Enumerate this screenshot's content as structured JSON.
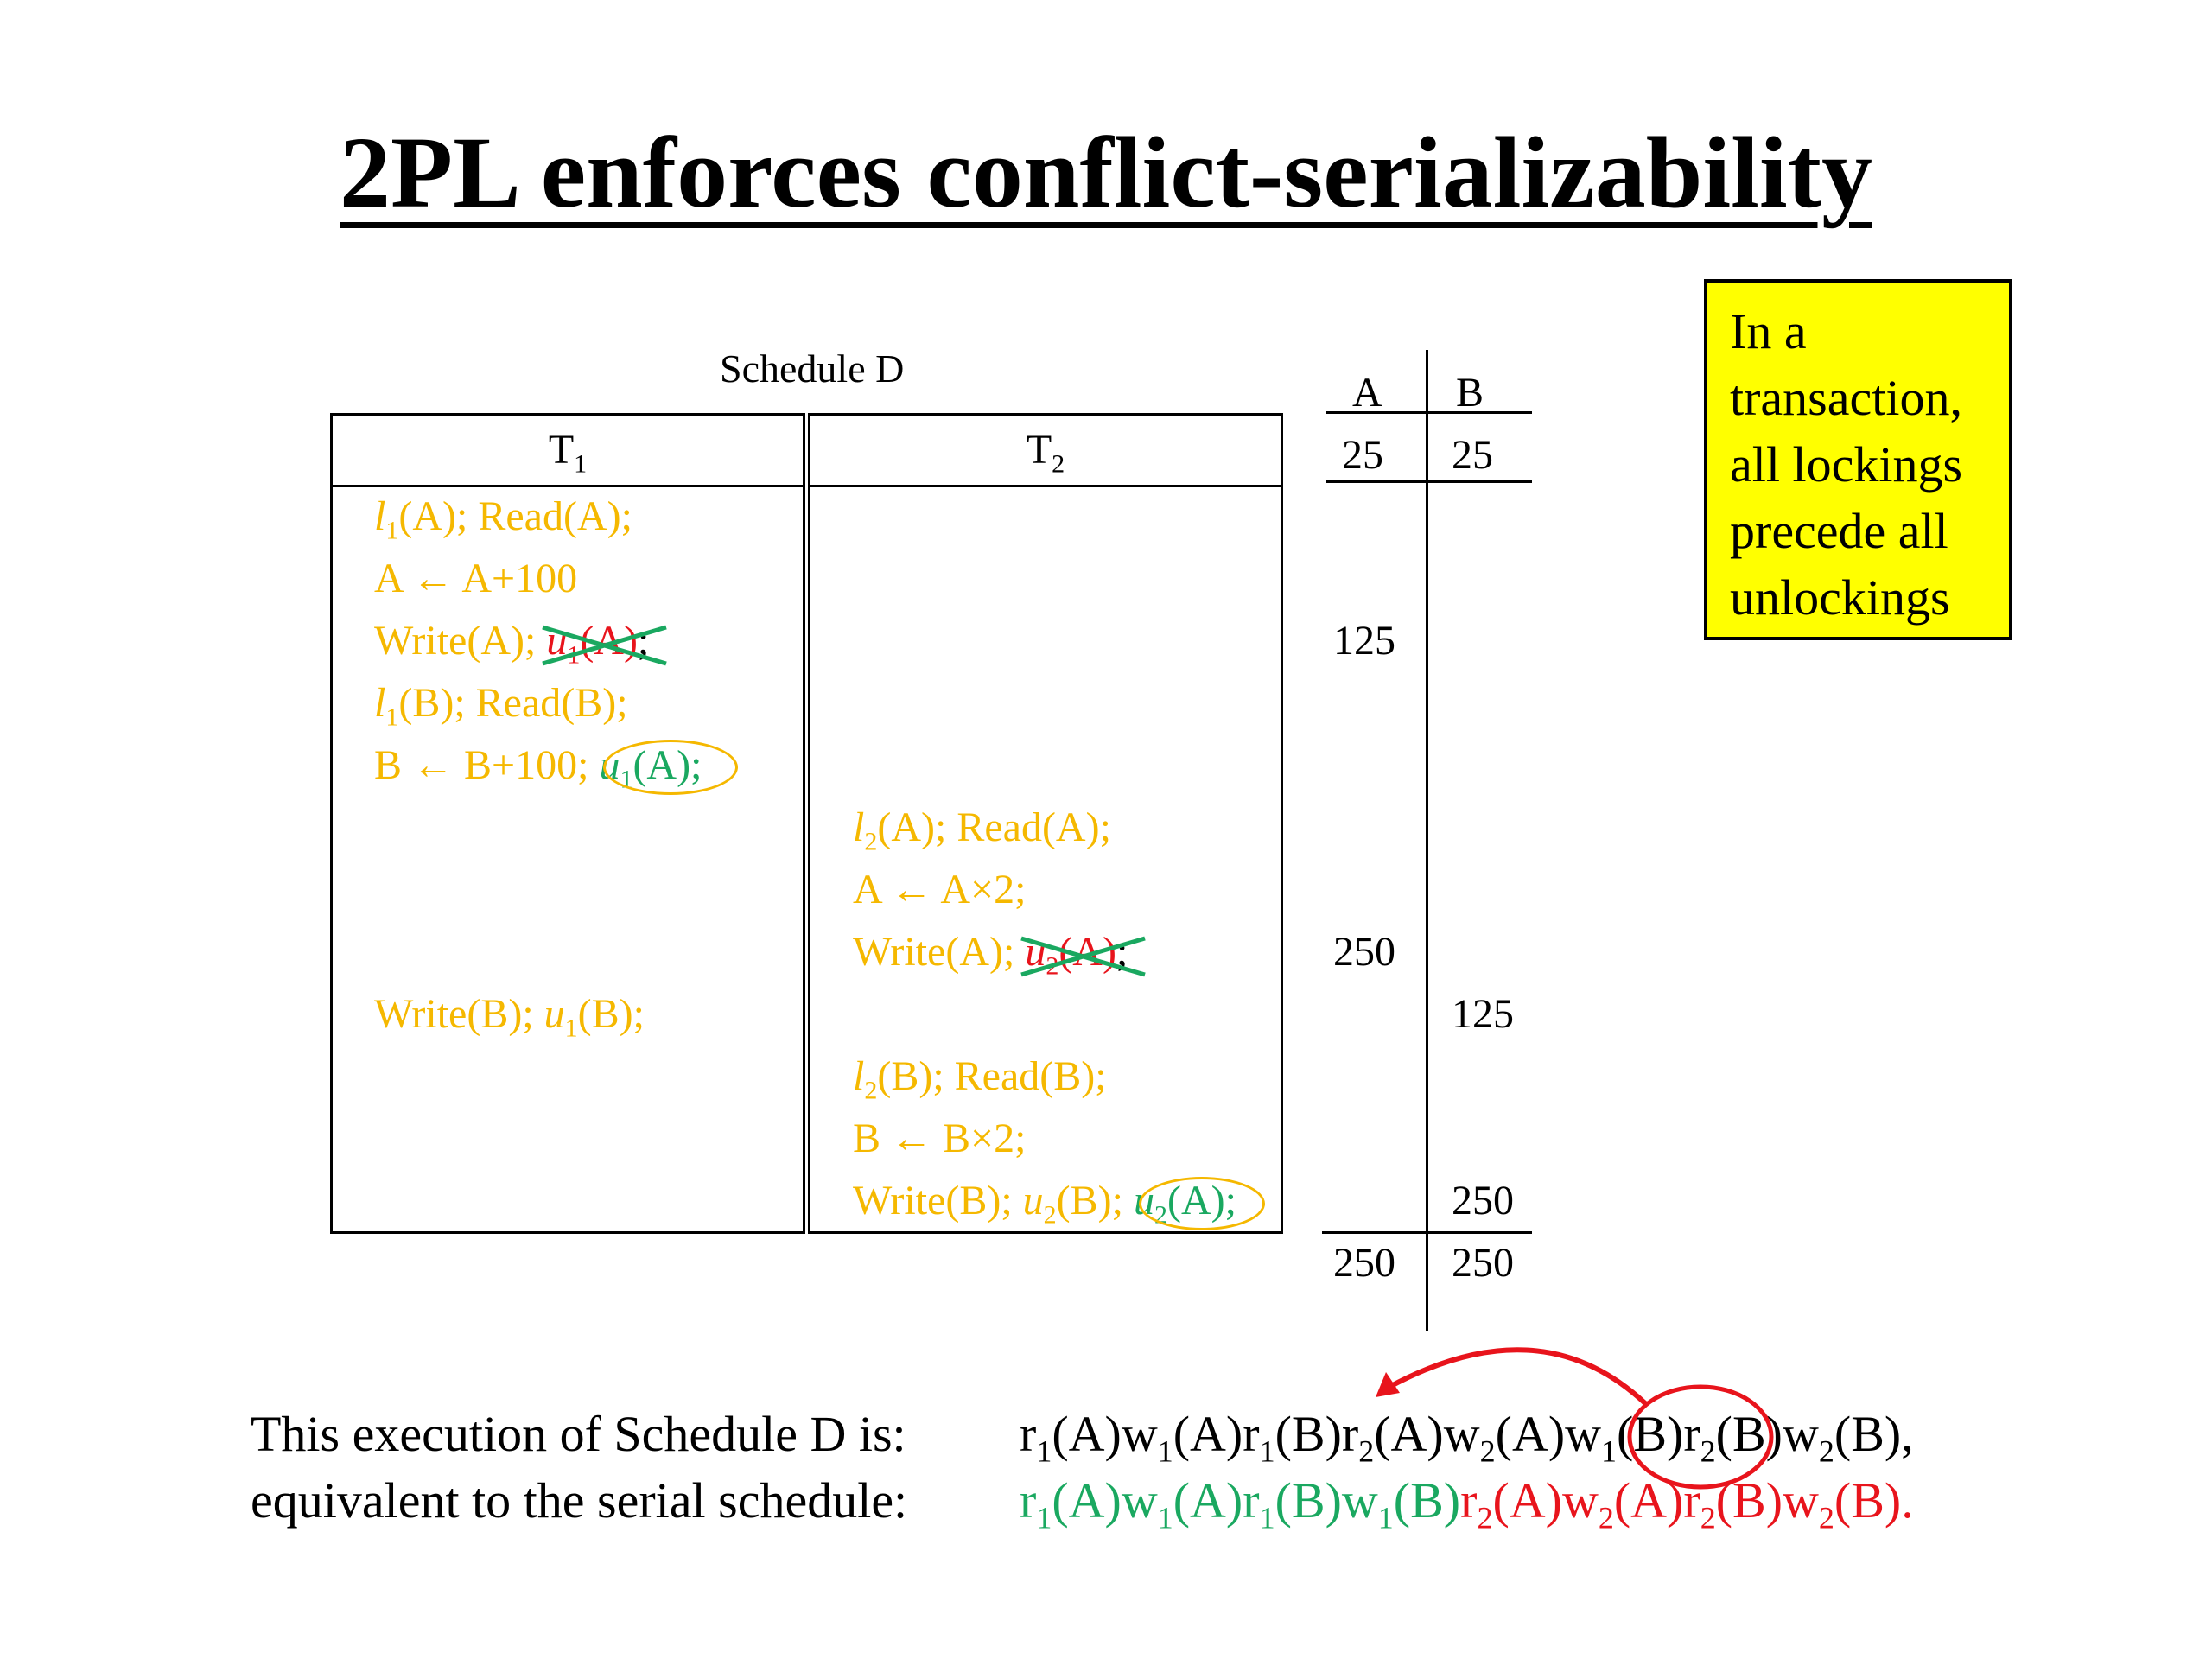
{
  "slide": {
    "title": "2PL enforces conflict-serializability"
  },
  "schedule": {
    "caption": "Schedule D",
    "t1_header": "T",
    "t1_header_sub": "1",
    "t2_header": "T",
    "t2_header_sub": "2",
    "t1_ops": {
      "row1": "(A); Read(A);",
      "row2": "A ← A+100",
      "row3_pre": "Write(A);",
      "row3_struck": "(A)",
      "row4": "(B); Read(B);",
      "row5_pre": "B ←  B+100;",
      "row5_circled": "(A);",
      "row9_pre": "Write(B);",
      "row9_post": "(B);"
    },
    "t2_ops": {
      "row6": "(A); Read(A);",
      "row7": "A ← A×2;",
      "row8_pre": "Write(A);",
      "row8_struck": "(A)",
      "row10": "(B); Read(B);",
      "row11": "B ← B×2;",
      "row12_pre": "Write(B);",
      "row12_mid": "(B);",
      "row12_circled": "(A);"
    },
    "symbols": {
      "lock": "l",
      "unlock": "u",
      "sub1": "1",
      "sub2": "2",
      "semicolon": ";"
    }
  },
  "values_table": {
    "col_a": "A",
    "col_b": "B",
    "initial_a": "25",
    "initial_b": "25",
    "a_after_t1": "125",
    "a_after_t2": "250",
    "b_after_t1": "125",
    "b_after_t2": "250",
    "final_a": "250",
    "final_b": "250"
  },
  "note": {
    "text_lines": [
      "In a",
      "transaction,",
      "all lockings",
      "precede all",
      "unlockings"
    ]
  },
  "bottom": {
    "line1_label": "This execution of Schedule D is:",
    "line2_label": "equivalent to the serial schedule:",
    "end_comma": ",",
    "end_period": "."
  },
  "colors": {
    "op_text": "#f5b800",
    "t1_serial": "#1aa860",
    "t2_serial": "#e8141c",
    "note_bg": "#ffff00"
  }
}
